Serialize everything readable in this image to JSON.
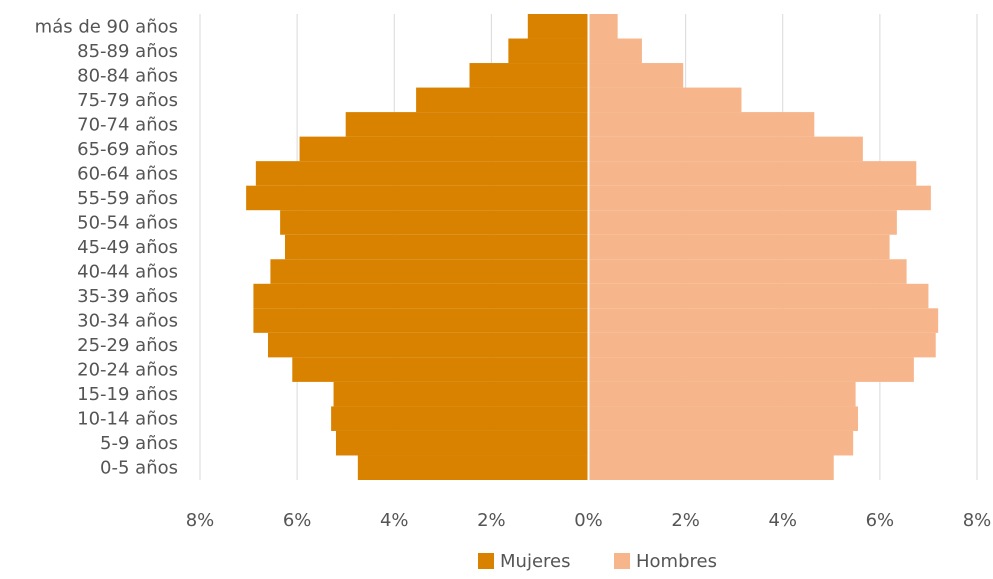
{
  "chart_data": {
    "type": "bar",
    "orientation": "horizontal",
    "layout": "population-pyramid",
    "categories": [
      "0-5 años",
      "5-9 años",
      "10-14 años",
      "15-19 años",
      "20-24 años",
      "25-29 años",
      "30-34 años",
      "35-39 años",
      "40-44 años",
      "45-49 años",
      "50-54 años",
      "55-59 años",
      "60-64 años",
      "65-69 años",
      "70-74 años",
      "75-79 años",
      "80-84 años",
      "85-89 años",
      "más de 90 años"
    ],
    "series": [
      {
        "name": "Mujeres",
        "color": "#D88200",
        "values": [
          4.75,
          5.2,
          5.3,
          5.25,
          6.1,
          6.6,
          6.9,
          6.9,
          6.55,
          6.25,
          6.35,
          7.05,
          6.85,
          5.95,
          5.0,
          3.55,
          2.45,
          1.65,
          1.25
        ]
      },
      {
        "name": "Hombres",
        "color": "#F6B58A",
        "values": [
          5.05,
          5.45,
          5.55,
          5.5,
          6.7,
          7.15,
          7.2,
          7.0,
          6.55,
          6.2,
          6.35,
          7.05,
          6.75,
          5.65,
          4.65,
          3.15,
          1.95,
          1.1,
          0.6
        ]
      }
    ],
    "xlim": [
      -8,
      8
    ],
    "x_ticks": [
      "8%",
      "6%",
      "4%",
      "2%",
      "0%",
      "2%",
      "4%",
      "6%",
      "8%"
    ],
    "grid": true,
    "legend_position": "bottom"
  }
}
